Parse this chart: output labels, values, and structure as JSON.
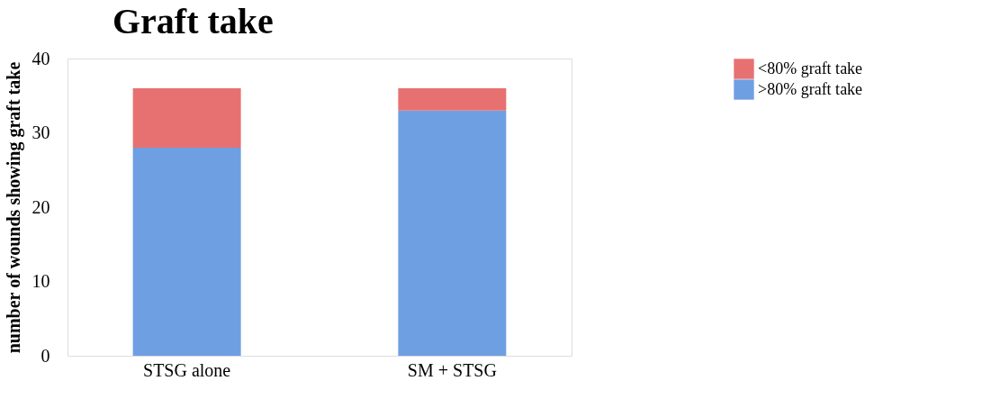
{
  "chart_data": {
    "type": "bar",
    "title": "Graft take",
    "ylabel": "number of wounds showing graft take",
    "categories": [
      "STSG alone",
      "SM + STSG"
    ],
    "stacked": true,
    "ylim": [
      0,
      40
    ],
    "yticks": [
      0,
      10,
      20,
      30,
      40
    ],
    "grid": false,
    "legend": "right",
    "series": [
      {
        "name": ">80% graft take",
        "color": "#6f9fe3",
        "values": [
          28,
          33
        ]
      },
      {
        "name": "<80% graft take",
        "color": "#e77170",
        "values": [
          8,
          3
        ]
      }
    ]
  }
}
